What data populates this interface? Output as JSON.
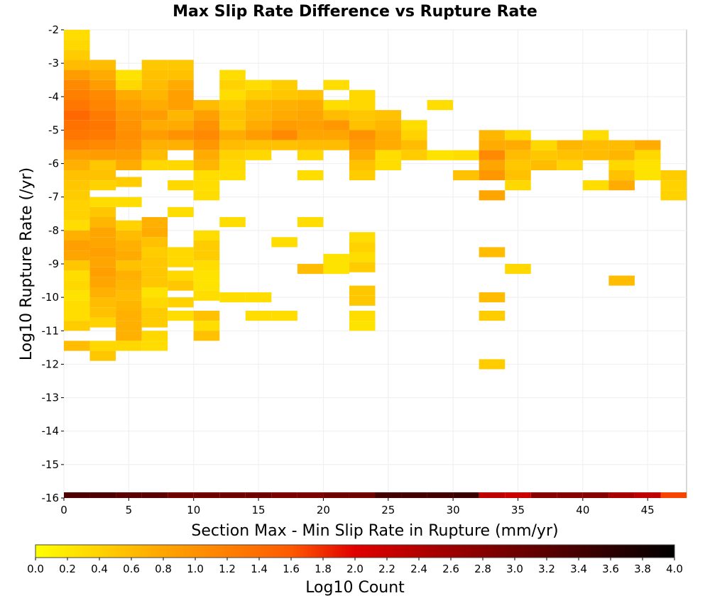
{
  "chart_data": {
    "type": "heatmap",
    "title": "Max Slip Rate Difference vs Rupture Rate",
    "xlabel": "Section Max - Min Slip Rate in Rupture (mm/yr)",
    "ylabel": "Log10 Rupture Rate (/yr)",
    "colorbar_label": "Log10 Count",
    "xlim": [
      0,
      48
    ],
    "ylim": [
      -16,
      -2
    ],
    "x_ticks": [
      "0",
      "5",
      "10",
      "15",
      "20",
      "25",
      "30",
      "35",
      "40",
      "45"
    ],
    "y_ticks": [
      "-2",
      "-3",
      "-4",
      "-5",
      "-6",
      "-7",
      "-8",
      "-9",
      "-10",
      "-11",
      "-12",
      "-13",
      "-14",
      "-15",
      "-16"
    ],
    "colorbar_ticks": [
      "0.0",
      "0.2",
      "0.4",
      "0.6",
      "0.8",
      "1.0",
      "1.2",
      "1.4",
      "1.6",
      "1.8",
      "2.0",
      "2.2",
      "2.4",
      "2.6",
      "2.8",
      "3.0",
      "3.2",
      "3.4",
      "3.6",
      "3.8",
      "4.0"
    ],
    "colorbar_range": [
      0,
      4
    ],
    "colormap": [
      "#ffff00",
      "#ffa500",
      "#ff5a00",
      "#e00000",
      "#700000",
      "#000000"
    ],
    "grid": true,
    "x_bin_width": 2,
    "y_bin_height": 0.3,
    "cells": [
      [
        0,
        -2.15,
        0.3
      ],
      [
        0,
        -2.45,
        0.35
      ],
      [
        0,
        -2.75,
        0.45
      ],
      [
        0,
        -3.05,
        0.6
      ],
      [
        0,
        -3.35,
        0.9
      ],
      [
        0,
        -3.65,
        1.1
      ],
      [
        0,
        -3.95,
        1.2
      ],
      [
        0,
        -4.25,
        1.3
      ],
      [
        0,
        -4.55,
        1.45
      ],
      [
        0,
        -4.85,
        1.35
      ],
      [
        0,
        -5.15,
        1.3
      ],
      [
        0,
        -5.45,
        1.15
      ],
      [
        0,
        -5.75,
        0.85
      ],
      [
        0,
        -6.05,
        0.7
      ],
      [
        0,
        -6.35,
        0.55
      ],
      [
        0,
        -6.65,
        0.5
      ],
      [
        0,
        -6.95,
        0.45
      ],
      [
        0,
        -7.25,
        0.4
      ],
      [
        0,
        -7.55,
        0.4
      ],
      [
        0,
        -7.85,
        0.3
      ],
      [
        0,
        -8.15,
        0.7
      ],
      [
        0,
        -8.45,
        0.85
      ],
      [
        0,
        -8.75,
        0.8
      ],
      [
        0,
        -9.05,
        0.5
      ],
      [
        0,
        -9.35,
        0.3
      ],
      [
        0,
        -9.65,
        0.35
      ],
      [
        0,
        -9.95,
        0.25
      ],
      [
        0,
        -10.25,
        0.3
      ],
      [
        0,
        -10.55,
        0.3
      ],
      [
        0,
        -10.85,
        0.45
      ],
      [
        0,
        -11.45,
        0.6
      ],
      [
        2,
        -3.05,
        0.6
      ],
      [
        2,
        -3.35,
        0.75
      ],
      [
        2,
        -3.65,
        0.9
      ],
      [
        2,
        -3.95,
        1.1
      ],
      [
        2,
        -4.25,
        1.15
      ],
      [
        2,
        -4.55,
        1.25
      ],
      [
        2,
        -4.85,
        1.3
      ],
      [
        2,
        -5.15,
        1.25
      ],
      [
        2,
        -5.45,
        1.1
      ],
      [
        2,
        -5.75,
        0.9
      ],
      [
        2,
        -6.05,
        0.5
      ],
      [
        2,
        -6.35,
        0.55
      ],
      [
        2,
        -6.65,
        0.4
      ],
      [
        2,
        -7.15,
        0.3
      ],
      [
        2,
        -7.45,
        0.5
      ],
      [
        2,
        -7.75,
        0.65
      ],
      [
        2,
        -8.05,
        0.8
      ],
      [
        2,
        -8.35,
        0.8
      ],
      [
        2,
        -8.65,
        0.85
      ],
      [
        2,
        -8.95,
        0.8
      ],
      [
        2,
        -9.25,
        0.85
      ],
      [
        2,
        -9.55,
        0.8
      ],
      [
        2,
        -9.85,
        0.7
      ],
      [
        2,
        -10.15,
        0.6
      ],
      [
        2,
        -10.45,
        0.55
      ],
      [
        2,
        -10.75,
        0.4
      ],
      [
        2,
        -11.45,
        0.35
      ],
      [
        2,
        -11.75,
        0.5
      ],
      [
        4,
        -3.35,
        0.25
      ],
      [
        4,
        -3.65,
        0.35
      ],
      [
        4,
        -3.95,
        0.75
      ],
      [
        4,
        -4.25,
        0.85
      ],
      [
        4,
        -4.55,
        0.95
      ],
      [
        4,
        -4.85,
        1.0
      ],
      [
        4,
        -5.15,
        1.05
      ],
      [
        4,
        -5.45,
        1.0
      ],
      [
        4,
        -5.75,
        0.9
      ],
      [
        4,
        -6.05,
        0.75
      ],
      [
        4,
        -6.55,
        0.45
      ],
      [
        4,
        -7.15,
        0.3
      ],
      [
        4,
        -7.85,
        0.4
      ],
      [
        4,
        -8.15,
        0.6
      ],
      [
        4,
        -8.45,
        0.7
      ],
      [
        4,
        -8.75,
        0.75
      ],
      [
        4,
        -9.05,
        0.55
      ],
      [
        4,
        -9.35,
        0.7
      ],
      [
        4,
        -9.65,
        0.65
      ],
      [
        4,
        -9.95,
        0.6
      ],
      [
        4,
        -10.25,
        0.65
      ],
      [
        4,
        -10.55,
        0.7
      ],
      [
        4,
        -10.85,
        0.7
      ],
      [
        4,
        -11.15,
        0.7
      ],
      [
        4,
        -11.45,
        0.35
      ],
      [
        6,
        -3.05,
        0.5
      ],
      [
        6,
        -3.35,
        0.55
      ],
      [
        6,
        -3.65,
        0.6
      ],
      [
        6,
        -3.95,
        0.65
      ],
      [
        6,
        -4.25,
        0.75
      ],
      [
        6,
        -4.55,
        0.9
      ],
      [
        6,
        -4.85,
        0.75
      ],
      [
        6,
        -5.15,
        0.9
      ],
      [
        6,
        -5.45,
        0.7
      ],
      [
        6,
        -5.75,
        0.6
      ],
      [
        6,
        -6.05,
        0.35
      ],
      [
        6,
        -7.75,
        0.7
      ],
      [
        6,
        -8.05,
        0.75
      ],
      [
        6,
        -8.35,
        0.55
      ],
      [
        6,
        -8.65,
        0.45
      ],
      [
        6,
        -8.95,
        0.5
      ],
      [
        6,
        -9.25,
        0.5
      ],
      [
        6,
        -9.55,
        0.5
      ],
      [
        6,
        -9.85,
        0.25
      ],
      [
        6,
        -10.15,
        0.35
      ],
      [
        6,
        -10.45,
        0.45
      ],
      [
        6,
        -10.75,
        0.45
      ],
      [
        6,
        -11.15,
        0.35
      ],
      [
        6,
        -11.45,
        0.3
      ],
      [
        8,
        -3.05,
        0.5
      ],
      [
        8,
        -3.35,
        0.55
      ],
      [
        8,
        -3.65,
        0.75
      ],
      [
        8,
        -3.95,
        0.85
      ],
      [
        8,
        -4.25,
        0.85
      ],
      [
        8,
        -4.55,
        0.65
      ],
      [
        8,
        -4.85,
        0.75
      ],
      [
        8,
        -5.15,
        1.0
      ],
      [
        8,
        -5.45,
        0.7
      ],
      [
        8,
        -6.05,
        0.35
      ],
      [
        8,
        -6.65,
        0.35
      ],
      [
        8,
        -7.45,
        0.3
      ],
      [
        8,
        -8.65,
        0.35
      ],
      [
        8,
        -8.95,
        0.35
      ],
      [
        8,
        -9.35,
        0.35
      ],
      [
        8,
        -9.65,
        0.5
      ],
      [
        8,
        -10.15,
        0.4
      ],
      [
        8,
        -10.55,
        0.3
      ],
      [
        10,
        -4.25,
        0.6
      ],
      [
        10,
        -4.55,
        0.85
      ],
      [
        10,
        -4.85,
        1.0
      ],
      [
        10,
        -5.15,
        1.1
      ],
      [
        10,
        -5.45,
        0.95
      ],
      [
        10,
        -5.75,
        0.75
      ],
      [
        10,
        -6.05,
        0.65
      ],
      [
        10,
        -6.35,
        0.3
      ],
      [
        10,
        -6.65,
        0.3
      ],
      [
        10,
        -6.95,
        0.3
      ],
      [
        10,
        -8.15,
        0.3
      ],
      [
        10,
        -8.45,
        0.45
      ],
      [
        10,
        -8.75,
        0.45
      ],
      [
        10,
        -9.05,
        0.3
      ],
      [
        10,
        -9.35,
        0.25
      ],
      [
        10,
        -9.65,
        0.25
      ],
      [
        10,
        -9.95,
        0.3
      ],
      [
        10,
        -10.55,
        0.55
      ],
      [
        10,
        -10.85,
        0.3
      ],
      [
        10,
        -11.15,
        0.55
      ],
      [
        12,
        -3.35,
        0.3
      ],
      [
        12,
        -3.65,
        0.4
      ],
      [
        12,
        -3.95,
        0.3
      ],
      [
        12,
        -4.25,
        0.45
      ],
      [
        12,
        -4.55,
        0.55
      ],
      [
        12,
        -4.85,
        0.5
      ],
      [
        12,
        -5.15,
        0.75
      ],
      [
        12,
        -5.45,
        0.6
      ],
      [
        12,
        -5.75,
        0.4
      ],
      [
        12,
        -6.05,
        0.35
      ],
      [
        12,
        -6.35,
        0.3
      ],
      [
        12,
        -7.75,
        0.3
      ],
      [
        12,
        -10.0,
        0.3
      ],
      [
        14,
        -3.65,
        0.3
      ],
      [
        14,
        -3.95,
        0.45
      ],
      [
        14,
        -4.25,
        0.65
      ],
      [
        14,
        -4.55,
        0.65
      ],
      [
        14,
        -4.85,
        0.75
      ],
      [
        14,
        -5.15,
        0.9
      ],
      [
        14,
        -5.45,
        0.55
      ],
      [
        14,
        -5.75,
        0.35
      ],
      [
        14,
        -10.0,
        0.3
      ],
      [
        14,
        -10.55,
        0.3
      ],
      [
        16,
        -3.65,
        0.45
      ],
      [
        16,
        -3.95,
        0.5
      ],
      [
        16,
        -4.25,
        0.7
      ],
      [
        16,
        -4.55,
        0.75
      ],
      [
        16,
        -4.85,
        0.9
      ],
      [
        16,
        -5.15,
        1.1
      ],
      [
        16,
        -5.45,
        0.55
      ],
      [
        16,
        -8.35,
        0.3
      ],
      [
        16,
        -10.55,
        0.3
      ],
      [
        18,
        -3.95,
        0.55
      ],
      [
        18,
        -4.25,
        0.75
      ],
      [
        18,
        -4.55,
        0.8
      ],
      [
        18,
        -4.85,
        0.85
      ],
      [
        18,
        -5.15,
        0.8
      ],
      [
        18,
        -5.45,
        0.6
      ],
      [
        18,
        -5.75,
        0.35
      ],
      [
        18,
        -6.35,
        0.3
      ],
      [
        18,
        -7.75,
        0.3
      ],
      [
        18,
        -9.15,
        0.6
      ],
      [
        20,
        -3.65,
        0.3
      ],
      [
        20,
        -4.25,
        0.3
      ],
      [
        20,
        -4.55,
        0.6
      ],
      [
        20,
        -4.85,
        0.95
      ],
      [
        20,
        -5.15,
        0.8
      ],
      [
        20,
        -5.45,
        0.6
      ],
      [
        20,
        -8.85,
        0.25
      ],
      [
        20,
        -9.15,
        0.25
      ],
      [
        22,
        -3.95,
        0.35
      ],
      [
        22,
        -4.25,
        0.35
      ],
      [
        22,
        -4.55,
        0.5
      ],
      [
        22,
        -4.85,
        0.55
      ],
      [
        22,
        -5.15,
        1.0
      ],
      [
        22,
        -5.45,
        0.9
      ],
      [
        22,
        -5.75,
        0.75
      ],
      [
        22,
        -6.05,
        0.55
      ],
      [
        22,
        -6.35,
        0.45
      ],
      [
        22,
        -8.2,
        0.3
      ],
      [
        22,
        -8.5,
        0.4
      ],
      [
        22,
        -8.8,
        0.3
      ],
      [
        22,
        -9.1,
        0.45
      ],
      [
        22,
        -9.8,
        0.5
      ],
      [
        22,
        -10.1,
        0.5
      ],
      [
        22,
        -10.55,
        0.3
      ],
      [
        22,
        -10.85,
        0.25
      ],
      [
        24,
        -4.55,
        0.55
      ],
      [
        24,
        -4.85,
        0.65
      ],
      [
        24,
        -5.15,
        0.75
      ],
      [
        24,
        -5.45,
        0.75
      ],
      [
        24,
        -5.75,
        0.3
      ],
      [
        24,
        -6.05,
        0.3
      ],
      [
        26,
        -4.85,
        0.3
      ],
      [
        26,
        -5.15,
        0.4
      ],
      [
        26,
        -5.45,
        0.6
      ],
      [
        26,
        -5.75,
        0.45
      ],
      [
        28,
        -4.25,
        0.3
      ],
      [
        28,
        -5.75,
        0.25
      ],
      [
        30,
        -5.75,
        0.3
      ],
      [
        30,
        -6.35,
        0.55
      ],
      [
        32,
        -5.15,
        0.65
      ],
      [
        32,
        -5.45,
        0.75
      ],
      [
        32,
        -5.75,
        1.1
      ],
      [
        32,
        -6.05,
        0.8
      ],
      [
        32,
        -6.35,
        0.95
      ],
      [
        32,
        -6.95,
        0.8
      ],
      [
        32,
        -8.65,
        0.6
      ],
      [
        32,
        -10.0,
        0.6
      ],
      [
        32,
        -10.55,
        0.45
      ],
      [
        32,
        -12.0,
        0.45
      ],
      [
        34,
        -5.15,
        0.35
      ],
      [
        34,
        -5.45,
        0.75
      ],
      [
        34,
        -5.75,
        0.6
      ],
      [
        34,
        -6.05,
        0.5
      ],
      [
        34,
        -6.35,
        0.55
      ],
      [
        34,
        -6.65,
        0.35
      ],
      [
        34,
        -9.15,
        0.35
      ],
      [
        36,
        -5.45,
        0.35
      ],
      [
        36,
        -5.75,
        0.5
      ],
      [
        36,
        -6.05,
        0.6
      ],
      [
        38,
        -5.45,
        0.65
      ],
      [
        38,
        -5.75,
        0.55
      ],
      [
        38,
        -6.05,
        0.4
      ],
      [
        40,
        -5.15,
        0.3
      ],
      [
        40,
        -5.45,
        0.6
      ],
      [
        40,
        -5.75,
        0.6
      ],
      [
        40,
        -6.65,
        0.3
      ],
      [
        42,
        -5.45,
        0.6
      ],
      [
        42,
        -5.75,
        0.65
      ],
      [
        42,
        -6.05,
        0.35
      ],
      [
        42,
        -6.35,
        0.55
      ],
      [
        42,
        -6.65,
        0.75
      ],
      [
        42,
        -9.5,
        0.6
      ],
      [
        44,
        -5.45,
        0.75
      ],
      [
        44,
        -5.75,
        0.35
      ],
      [
        44,
        -6.05,
        0.25
      ],
      [
        44,
        -6.35,
        0.25
      ],
      [
        46,
        -6.35,
        0.45
      ],
      [
        46,
        -6.65,
        0.4
      ],
      [
        46,
        -6.95,
        0.4
      ],
      [
        0,
        -16.0,
        3.3
      ],
      [
        2,
        -16.0,
        3.3
      ],
      [
        4,
        -16.0,
        3.2
      ],
      [
        6,
        -16.0,
        3.2
      ],
      [
        8,
        -16.0,
        3.0
      ],
      [
        10,
        -16.0,
        3.0
      ],
      [
        12,
        -16.0,
        3.0
      ],
      [
        14,
        -16.0,
        3.0
      ],
      [
        16,
        -16.0,
        2.9
      ],
      [
        18,
        -16.0,
        2.9
      ],
      [
        20,
        -16.0,
        3.0
      ],
      [
        22,
        -16.0,
        3.0
      ],
      [
        24,
        -16.0,
        3.4
      ],
      [
        26,
        -16.0,
        3.4
      ],
      [
        28,
        -16.0,
        3.4
      ],
      [
        30,
        -16.0,
        3.5
      ],
      [
        32,
        -16.0,
        2.3
      ],
      [
        34,
        -16.0,
        2.2
      ],
      [
        36,
        -16.0,
        2.8
      ],
      [
        38,
        -16.0,
        2.8
      ],
      [
        40,
        -16.0,
        2.8
      ],
      [
        42,
        -16.0,
        2.5
      ],
      [
        44,
        -16.0,
        2.3
      ],
      [
        46,
        -16.0,
        1.7
      ]
    ]
  }
}
